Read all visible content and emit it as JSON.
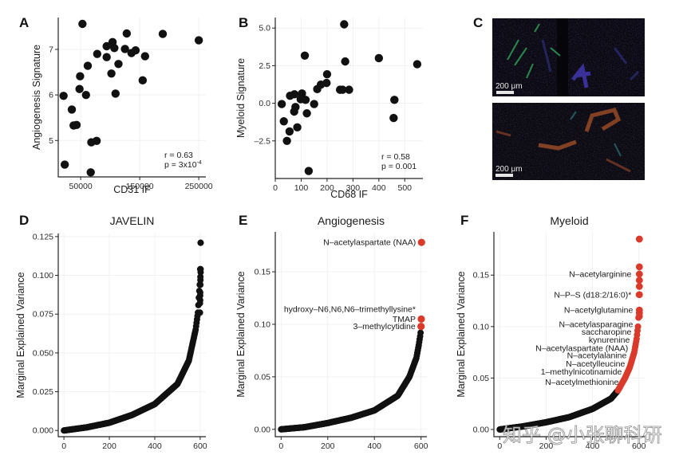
{
  "figure": {
    "watermark": "知乎 @小张聊科研",
    "colors": {
      "point": "#111111",
      "highlight": "#D93A2B",
      "micrograph_bg": "#0b0a14"
    }
  },
  "chart_data": [
    {
      "id": "A",
      "type": "scatter",
      "panel_letter": "A",
      "title": "",
      "xlabel": "CD31 IF",
      "ylabel": "Angiogenesis Signature",
      "xlim": [
        12000,
        262000
      ],
      "ylim": [
        4.2,
        7.7
      ],
      "xticks": [
        50000,
        150000,
        250000
      ],
      "xtick_labels": [
        "50000",
        "150000",
        "250000"
      ],
      "yticks": [
        5,
        6,
        7
      ],
      "ytick_labels": [
        "5",
        "6",
        "7"
      ],
      "grid": true,
      "annotation": {
        "r": "r = 0.63",
        "p_prefix": "p = 3x10",
        "p_exp": "-4",
        "position": "bottom-right"
      },
      "points": [
        [
          53000,
          7.56
        ],
        [
          128000,
          7.35
        ],
        [
          189000,
          7.34
        ],
        [
          250000,
          7.2
        ],
        [
          104000,
          7.16
        ],
        [
          94000,
          7.07
        ],
        [
          107000,
          7.03
        ],
        [
          125000,
          7.01
        ],
        [
          143000,
          6.98
        ],
        [
          136000,
          6.92
        ],
        [
          78000,
          6.9
        ],
        [
          94000,
          6.83
        ],
        [
          159000,
          6.85
        ],
        [
          62000,
          6.64
        ],
        [
          114000,
          6.68
        ],
        [
          102000,
          6.47
        ],
        [
          49000,
          6.41
        ],
        [
          155000,
          6.32
        ],
        [
          48000,
          6.13
        ],
        [
          109000,
          6.03
        ],
        [
          59000,
          6.0
        ],
        [
          21000,
          5.98
        ],
        [
          35000,
          5.68
        ],
        [
          38000,
          5.33
        ],
        [
          43000,
          5.34
        ],
        [
          77000,
          4.99
        ],
        [
          68000,
          4.96
        ],
        [
          23000,
          4.47
        ],
        [
          67000,
          4.3
        ]
      ]
    },
    {
      "id": "B",
      "type": "scatter",
      "panel_letter": "B",
      "title": "",
      "xlabel": "CD68 IF",
      "ylabel": "Myeloid Signature",
      "xlim": [
        0,
        570
      ],
      "ylim": [
        -5.0,
        5.7
      ],
      "xticks": [
        0,
        100,
        200,
        300,
        400,
        500
      ],
      "xtick_labels": [
        "0",
        "100",
        "200",
        "300",
        "400",
        "500"
      ],
      "yticks": [
        -2.5,
        0,
        2.5,
        5
      ],
      "ytick_labels": [
        "-2.5",
        "0.0",
        "2.5",
        "5.0"
      ],
      "grid": true,
      "annotation": {
        "r": "r = 0.58",
        "p": "p = 0.001",
        "position": "bottom-right"
      },
      "points": [
        [
          266,
          5.25
        ],
        [
          114,
          3.17
        ],
        [
          400,
          3.0
        ],
        [
          548,
          2.6
        ],
        [
          270,
          2.78
        ],
        [
          200,
          1.93
        ],
        [
          198,
          1.35
        ],
        [
          176,
          1.24
        ],
        [
          162,
          0.94
        ],
        [
          250,
          0.9
        ],
        [
          260,
          0.9
        ],
        [
          285,
          0.9
        ],
        [
          103,
          0.65
        ],
        [
          74,
          0.6
        ],
        [
          57,
          0.5
        ],
        [
          98,
          0.27
        ],
        [
          117,
          0.23
        ],
        [
          460,
          0.23
        ],
        [
          25,
          -0.05
        ],
        [
          150,
          -0.05
        ],
        [
          78,
          -0.25
        ],
        [
          73,
          -0.55
        ],
        [
          122,
          -0.67
        ],
        [
          457,
          -0.98
        ],
        [
          33,
          -1.2
        ],
        [
          85,
          -1.6
        ],
        [
          55,
          -1.87
        ],
        [
          45,
          -2.5
        ],
        [
          129,
          -4.5
        ]
      ]
    },
    {
      "id": "D",
      "type": "scatter",
      "panel_letter": "D",
      "title": "JAVELIN",
      "xlabel": "",
      "ylabel": "Marginal Explained Variance",
      "xlim": [
        -25,
        625
      ],
      "ylim": [
        -0.004,
        0.127
      ],
      "xticks": [
        0,
        200,
        400,
        600
      ],
      "xtick_labels": [
        "0",
        "200",
        "400",
        "600"
      ],
      "yticks": [
        0,
        0.025,
        0.05,
        0.075,
        0.1,
        0.125
      ],
      "ytick_labels": [
        "0.000",
        "0.025",
        "0.050",
        "0.075",
        "0.100",
        "0.125"
      ],
      "grid": true,
      "n_points": 602,
      "curve_description": "sorted ascending marginal explained variance per metabolite",
      "curve_keypoints": [
        [
          0,
          0.0
        ],
        [
          100,
          0.002
        ],
        [
          200,
          0.005
        ],
        [
          300,
          0.01
        ],
        [
          400,
          0.017
        ],
        [
          500,
          0.03
        ],
        [
          550,
          0.045
        ],
        [
          580,
          0.065
        ],
        [
          590,
          0.076
        ],
        [
          595,
          0.088
        ],
        [
          598,
          0.094
        ],
        [
          600,
          0.104
        ],
        [
          602,
          0.121
        ]
      ],
      "top_values": [
        0.121,
        0.104,
        0.102,
        0.099,
        0.097,
        0.094,
        0.089,
        0.087,
        0.084,
        0.082,
        0.076
      ],
      "highlighted": []
    },
    {
      "id": "E",
      "type": "scatter",
      "panel_letter": "E",
      "title": "Angiogenesis",
      "xlabel": "",
      "ylabel": "Marginal Explained Variance",
      "xlim": [
        -25,
        625
      ],
      "ylim": [
        -0.007,
        0.188
      ],
      "xticks": [
        0,
        200,
        400,
        600
      ],
      "xtick_labels": [
        "0",
        "200",
        "400",
        "600"
      ],
      "yticks": [
        0,
        0.05,
        0.1,
        0.15
      ],
      "ytick_labels": [
        "0.00",
        "0.05",
        "0.10",
        "0.15"
      ],
      "grid": true,
      "n_points": 602,
      "curve_keypoints": [
        [
          0,
          0.0
        ],
        [
          100,
          0.002
        ],
        [
          200,
          0.006
        ],
        [
          300,
          0.011
        ],
        [
          400,
          0.018
        ],
        [
          500,
          0.032
        ],
        [
          550,
          0.05
        ],
        [
          580,
          0.068
        ],
        [
          590,
          0.08
        ],
        [
          597,
          0.09
        ],
        [
          599,
          0.094
        ]
      ],
      "highlighted": [
        {
          "label": "N–acetylaspartate (NAA)",
          "x": 602,
          "y": 0.178
        },
        {
          "label": "hydroxy–N6,N6,N6–trimethyllysine*",
          "x": 601,
          "y": 0.105,
          "label_only_above": true
        },
        {
          "label": "TMAP",
          "x": 601,
          "y": 0.105
        },
        {
          "label": "3–methylcytidine",
          "x": 600,
          "y": 0.098
        }
      ]
    },
    {
      "id": "F",
      "type": "scatter",
      "panel_letter": "F",
      "title": "Myeloid",
      "xlabel": "",
      "ylabel": "Marginal Explained Variance",
      "xlim": [
        -25,
        625
      ],
      "ylim": [
        -0.007,
        0.192
      ],
      "xticks": [
        0,
        200,
        400,
        600
      ],
      "xtick_labels": [
        "0",
        "200",
        "400",
        "600"
      ],
      "yticks": [
        0,
        0.05,
        0.1,
        0.15
      ],
      "ytick_labels": [
        "0.00",
        "0.05",
        "0.10",
        "0.15"
      ],
      "grid": true,
      "n_points": 602,
      "highlight_from_index": 510,
      "curve_keypoints": [
        [
          0,
          0.0
        ],
        [
          100,
          0.003
        ],
        [
          200,
          0.007
        ],
        [
          300,
          0.012
        ],
        [
          400,
          0.02
        ],
        [
          480,
          0.03
        ],
        [
          510,
          0.038
        ],
        [
          540,
          0.05
        ],
        [
          560,
          0.06
        ],
        [
          580,
          0.075
        ],
        [
          590,
          0.088
        ],
        [
          596,
          0.1
        ],
        [
          599,
          0.113
        ],
        [
          600,
          0.131
        ],
        [
          601,
          0.145
        ],
        [
          602,
          0.158
        ],
        [
          603,
          0.185
        ]
      ],
      "highlighted": [
        {
          "label": "N–acetylarginine",
          "y": 0.151
        },
        {
          "label": "N–P–S (d18:2/16:0)*",
          "y": 0.131
        },
        {
          "label": "N–acetylglutamine",
          "y": 0.116
        },
        {
          "label": "N–acetylasparagine",
          "y": 0.102
        },
        {
          "label": "saccharopine",
          "y": 0.095
        },
        {
          "label": "kynurenine",
          "y": 0.087
        },
        {
          "label": "N–acetylaspartate (NAA)",
          "y": 0.079
        },
        {
          "label": "N–acetylalanine",
          "y": 0.072
        },
        {
          "label": "N–acetylleucine",
          "y": 0.064
        },
        {
          "label": "1–methylnicotinamide",
          "y": 0.056
        },
        {
          "label": "N–acetylmethionine",
          "y": 0.046
        }
      ]
    }
  ],
  "micrographs": {
    "panel_letter": "C",
    "images": [
      {
        "id": "C-top",
        "scale_bar_label": "200 μm",
        "dominant_stains": [
          "green",
          "blue"
        ]
      },
      {
        "id": "C-bottom",
        "scale_bar_label": "200 μm",
        "dominant_stains": [
          "orange",
          "cyan"
        ]
      }
    ]
  }
}
